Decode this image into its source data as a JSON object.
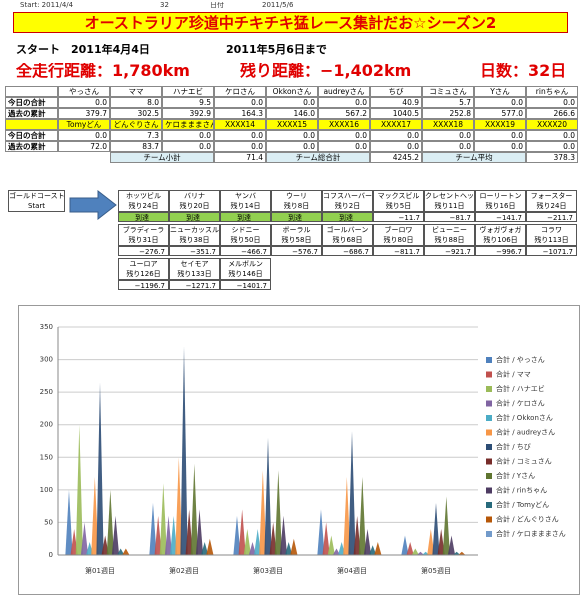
{
  "header": {
    "start": "Start: 2011/4/4",
    "days": "32",
    "date_label": "日付",
    "date": "2011/5/6"
  },
  "title": "オーストラリア珍道中チキチキ猛レース集計だお☆シーズン2",
  "dates": {
    "start": "スタート　2011年4月4日",
    "until": "2011年5月6日まで"
  },
  "stats": {
    "total": "全走行距離：1,780km",
    "remaining": "残り距離：−1,402km",
    "days": "日数：32日"
  },
  "table": {
    "groups": [
      {
        "names": [
          "やっさん",
          "ママ",
          "ハナエビ",
          "ケロさん",
          "Okkonさん",
          "audreyさん",
          "ちび",
          "コミュさん",
          "Yさん",
          "rinちゃん"
        ],
        "rows": [
          {
            "label": "今日の合計",
            "values": [
              "0.0",
              "8.0",
              "9.5",
              "0.0",
              "0.0",
              "0.0",
              "40.9",
              "5.7",
              "0.0",
              "0.0"
            ]
          },
          {
            "label": "過去の累計",
            "values": [
              "379.7",
              "302.5",
              "392.9",
              "164.3",
              "146.0",
              "567.2",
              "1040.5",
              "252.8",
              "577.0",
              "266.6"
            ]
          }
        ]
      },
      {
        "names": [
          "Tomyどん",
          "どんぐりさん",
          "ケロまままさん",
          "XXXX14",
          "XXXX15",
          "XXXX16",
          "XXXX17",
          "XXXX18",
          "XXXX19",
          "XXXX20"
        ],
        "rows": [
          {
            "label": "今日の合計",
            "values": [
              "0.0",
              "7.3",
              "0.0",
              "0.0",
              "0.0",
              "0.0",
              "0.0",
              "0.0",
              "0.0",
              "0.0"
            ]
          },
          {
            "label": "過去の累計",
            "values": [
              "72.0",
              "83.7",
              "0.0",
              "0.0",
              "0.0",
              "0.0",
              "0.0",
              "0.0",
              "0.0",
              "0.0"
            ]
          }
        ]
      }
    ],
    "summary": [
      {
        "label": "チーム小計",
        "value": "71.4"
      },
      {
        "label": "チーム総合計",
        "value": "4245.2"
      },
      {
        "label": "チーム平均",
        "value": "378.3"
      }
    ]
  },
  "route": {
    "start": [
      "ゴールドコースト",
      "Start"
    ],
    "stops": [
      {
        "name": "ホッツビル",
        "days": "残り24日",
        "status": "到達"
      },
      {
        "name": "バリナ",
        "days": "残り20日",
        "status": "到達"
      },
      {
        "name": "ヤンバ",
        "days": "残り14日",
        "status": "到達"
      },
      {
        "name": "ウーリ",
        "days": "残り8日",
        "status": "到達"
      },
      {
        "name": "コフスハーバー",
        "days": "残り2日",
        "status": "到達"
      },
      {
        "name": "マックスビル",
        "days": "残り5日",
        "status": "−11.7"
      },
      {
        "name": "クレセントヘッド",
        "days": "残り11日",
        "status": "−81.7"
      },
      {
        "name": "ローリートン",
        "days": "残り16日",
        "status": "−141.7"
      },
      {
        "name": "フォースター",
        "days": "残り24日",
        "status": "−211.7"
      },
      {
        "name": "ブラディーラ",
        "days": "残り31日",
        "status": "−276.7"
      },
      {
        "name": "ニューカッスル",
        "days": "残り38日",
        "status": "−351.7"
      },
      {
        "name": "シドニー",
        "days": "残り50日",
        "status": "−466.7"
      },
      {
        "name": "ボーラル",
        "days": "残り58日",
        "status": "−576.7"
      },
      {
        "name": "ゴールバーン",
        "days": "残り68日",
        "status": "−686.7"
      },
      {
        "name": "ブーロワ",
        "days": "残り80日",
        "status": "−811.7"
      },
      {
        "name": "ビューニー",
        "days": "残り88日",
        "status": "−921.7"
      },
      {
        "name": "ヴォガヴォガ",
        "days": "残り106日",
        "status": "−996.7"
      },
      {
        "name": "コラワ",
        "days": "残り113日",
        "status": "−1071.7"
      },
      {
        "name": "ユーロア",
        "days": "残り126日",
        "status": "−1196.7"
      },
      {
        "name": "セイモア",
        "days": "残り133日",
        "status": "−1271.7"
      },
      {
        "name": "メルボルン",
        "days": "残り146日",
        "status": "−1401.7"
      }
    ]
  },
  "chart_data": {
    "type": "bar",
    "categories": [
      "第01週目",
      "第02週目",
      "第03週目",
      "第04週目",
      "第05週目"
    ],
    "ylim": [
      0,
      350
    ],
    "yticks": [
      0,
      50,
      100,
      150,
      200,
      250,
      300,
      350
    ],
    "grid": true,
    "series": [
      {
        "name": "合計 / やっさん",
        "color": "#4f81bd",
        "values": [
          100,
          80,
          60,
          70,
          30
        ]
      },
      {
        "name": "合計 / ママ",
        "color": "#c0504d",
        "values": [
          40,
          60,
          70,
          50,
          20
        ]
      },
      {
        "name": "合計 / ハナエビ",
        "color": "#9bbb59",
        "values": [
          200,
          110,
          40,
          30,
          10
        ]
      },
      {
        "name": "合計 / ケロさん",
        "color": "#8064a2",
        "values": [
          50,
          60,
          20,
          10,
          5
        ]
      },
      {
        "name": "合計 / Okkonさん",
        "color": "#4bacc6",
        "values": [
          20,
          60,
          40,
          20,
          5
        ]
      },
      {
        "name": "合計 / audreyさん",
        "color": "#f79646",
        "values": [
          120,
          150,
          130,
          120,
          40
        ]
      },
      {
        "name": "合計 / ちび",
        "color": "#2c4d75",
        "values": [
          265,
          320,
          180,
          190,
          80
        ]
      },
      {
        "name": "合計 / コミュさん",
        "color": "#772c2a",
        "values": [
          30,
          70,
          50,
          60,
          40
        ]
      },
      {
        "name": "合計 / Yさん",
        "color": "#5f7530",
        "values": [
          100,
          140,
          130,
          120,
          90
        ]
      },
      {
        "name": "合計 / rinちゃん",
        "color": "#4d3b62",
        "values": [
          60,
          70,
          60,
          40,
          30
        ]
      },
      {
        "name": "合計 / Tomyどん",
        "color": "#276a7c",
        "values": [
          10,
          20,
          20,
          15,
          5
        ]
      },
      {
        "name": "合計 / どんぐりさん",
        "color": "#b65708",
        "values": [
          10,
          25,
          25,
          20,
          5
        ]
      },
      {
        "name": "合計 / ケロまままさん",
        "color": "#729aca",
        "values": [
          0,
          0,
          0,
          0,
          0
        ]
      }
    ]
  }
}
